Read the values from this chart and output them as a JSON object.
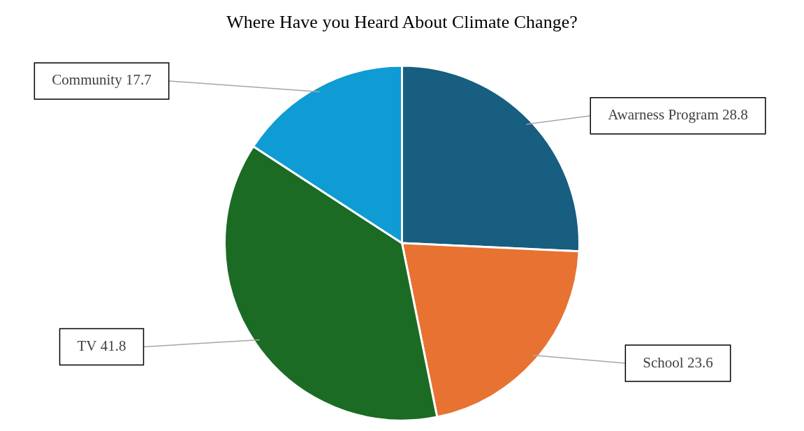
{
  "chart_data": {
    "type": "pie",
    "title": "Where Have you Heard About Climate Change?",
    "categories": [
      "Awarness Program",
      "School",
      "TV",
      "Community"
    ],
    "values": [
      28.8,
      23.6,
      41.8,
      17.7
    ],
    "colors": [
      "#175e80",
      "#e77232",
      "#1b6b24",
      "#0f9bd4"
    ],
    "data_labels": true,
    "legend": false
  }
}
